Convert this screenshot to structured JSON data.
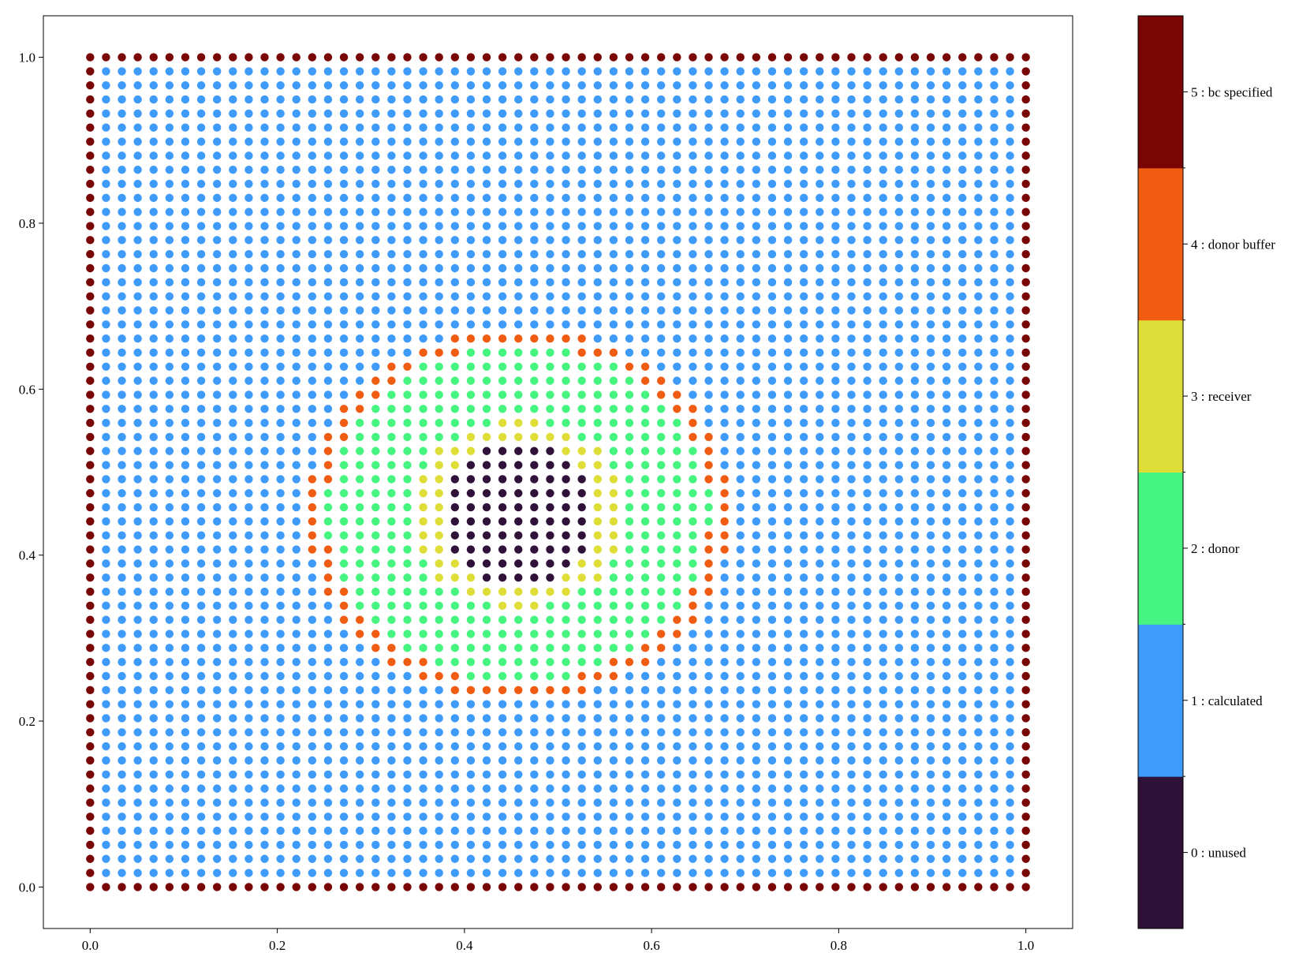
{
  "chart_data": {
    "type": "scatter",
    "title": "",
    "xlabel": "",
    "ylabel": "",
    "xlim": [
      -0.05,
      1.05
    ],
    "ylim": [
      -0.05,
      1.05
    ],
    "xticks": [
      0.0,
      0.2,
      0.4,
      0.6,
      0.8,
      1.0
    ],
    "yticks": [
      0.0,
      0.2,
      0.4,
      0.6,
      0.8,
      1.0
    ],
    "xtick_labels": [
      "0.0",
      "0.2",
      "0.4",
      "0.6",
      "0.8",
      "1.0"
    ],
    "ytick_labels": [
      "0.0",
      "0.2",
      "0.4",
      "0.6",
      "0.8",
      "1.0"
    ],
    "grid": false,
    "grid_points": {
      "nx": 60,
      "ny": 60,
      "x_range": [
        0.0,
        1.0
      ],
      "y_range": [
        0.0,
        1.0
      ],
      "spacing": 0.016949
    },
    "classification": {
      "boundary_class": 5,
      "interior_default_class": 1,
      "feature_center": [
        0.4576,
        0.4492
      ],
      "radial_bands": [
        {
          "max_radius": 0.085,
          "class": 0
        },
        {
          "max_radius": 0.115,
          "class": 3
        },
        {
          "max_radius": 0.205,
          "class": 2
        },
        {
          "max_radius": 0.228,
          "class": 4
        }
      ]
    },
    "colorbar": {
      "categories": [
        {
          "value": 0,
          "label": "0 : unused",
          "color": "#2f1139"
        },
        {
          "value": 1,
          "label": "1 : calculated",
          "color": "#3e9bfa"
        },
        {
          "value": 2,
          "label": "2 : donor",
          "color": "#45f57f"
        },
        {
          "value": 3,
          "label": "3 : receiver",
          "color": "#dfdd37"
        },
        {
          "value": 4,
          "label": "4 : donor buffer",
          "color": "#f05c12"
        },
        {
          "value": 5,
          "label": "5 : bc specified",
          "color": "#790505"
        }
      ]
    }
  }
}
